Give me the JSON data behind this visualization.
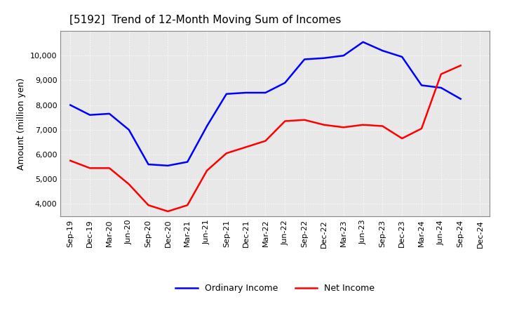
{
  "title": "[5192]  Trend of 12-Month Moving Sum of Incomes",
  "ylabel": "Amount (million yen)",
  "xlabels": [
    "Sep-19",
    "Dec-19",
    "Mar-20",
    "Jun-20",
    "Sep-20",
    "Dec-20",
    "Mar-21",
    "Jun-21",
    "Sep-21",
    "Dec-21",
    "Mar-22",
    "Jun-22",
    "Sep-22",
    "Dec-22",
    "Mar-23",
    "Jun-23",
    "Sep-23",
    "Dec-23",
    "Mar-24",
    "Jun-24",
    "Sep-24",
    "Dec-24"
  ],
  "ordinary_income": [
    8000,
    7600,
    7650,
    7000,
    5600,
    5550,
    5700,
    7150,
    8450,
    8500,
    8500,
    8900,
    9850,
    9900,
    10000,
    10550,
    10200,
    9950,
    8800,
    8700,
    8250,
    null
  ],
  "net_income": [
    5750,
    5450,
    5450,
    4800,
    3950,
    3700,
    3950,
    5350,
    6050,
    6300,
    6550,
    7350,
    7400,
    7200,
    7100,
    7200,
    7150,
    6650,
    7050,
    9250,
    9600,
    null
  ],
  "ordinary_color": "#0000FF",
  "net_color": "#FF0000",
  "background_color": "#FFFFFF",
  "plot_bg_color": "#E8E8E8",
  "grid_color": "#FFFFFF",
  "ylim": [
    3500,
    11000
  ],
  "yticks": [
    4000,
    5000,
    6000,
    7000,
    8000,
    9000,
    10000
  ],
  "title_fontsize": 11,
  "axis_fontsize": 9,
  "tick_fontsize": 8,
  "legend_fontsize": 9,
  "line_width": 1.8
}
